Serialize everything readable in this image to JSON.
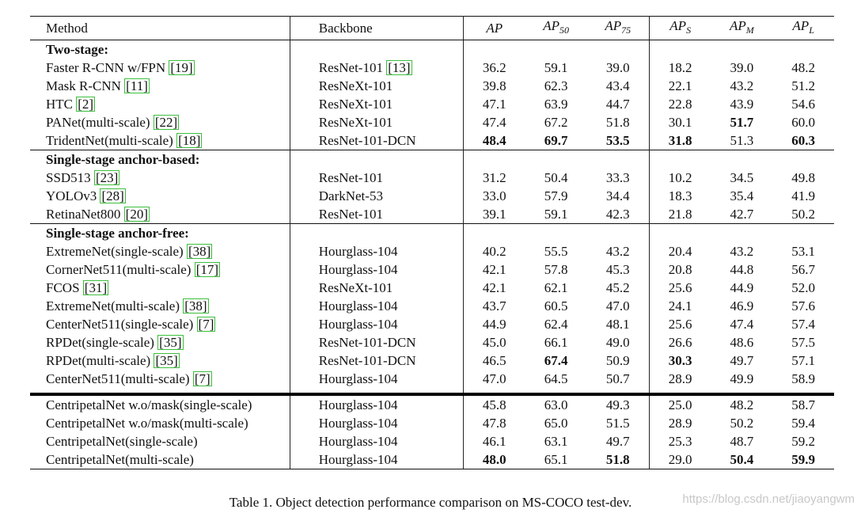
{
  "table": {
    "headers": {
      "method": "Method",
      "backbone": "Backbone",
      "ap": {
        "base": "AP",
        "sub": ""
      },
      "ap50": {
        "base": "AP",
        "sub": "50"
      },
      "ap75": {
        "base": "AP",
        "sub": "75"
      },
      "aps": {
        "base": "AP",
        "sub": "S"
      },
      "apm": {
        "base": "AP",
        "sub": "M"
      },
      "apl": {
        "base": "AP",
        "sub": "L"
      }
    },
    "sections": [
      {
        "title": "Two-stage:",
        "rows": [
          {
            "method": "Faster R-CNN w/FPN",
            "method_ref": "19",
            "backbone": "ResNet-101",
            "backbone_ref": "13",
            "vals": [
              "36.2",
              "59.1",
              "39.0",
              "18.2",
              "39.0",
              "48.2"
            ],
            "bold": [
              false,
              false,
              false,
              false,
              false,
              false
            ]
          },
          {
            "method": "Mask R-CNN",
            "method_ref": "11",
            "backbone": "ResNeXt-101",
            "backbone_ref": "",
            "vals": [
              "39.8",
              "62.3",
              "43.4",
              "22.1",
              "43.2",
              "51.2"
            ],
            "bold": [
              false,
              false,
              false,
              false,
              false,
              false
            ]
          },
          {
            "method": "HTC",
            "method_ref": "2",
            "backbone": "ResNeXt-101",
            "backbone_ref": "",
            "vals": [
              "47.1",
              "63.9",
              "44.7",
              "22.8",
              "43.9",
              "54.6"
            ],
            "bold": [
              false,
              false,
              false,
              false,
              false,
              false
            ]
          },
          {
            "method": "PANet(multi-scale)",
            "method_ref": "22",
            "backbone": "ResNeXt-101",
            "backbone_ref": "",
            "vals": [
              "47.4",
              "67.2",
              "51.8",
              "30.1",
              "51.7",
              "60.0"
            ],
            "bold": [
              false,
              false,
              false,
              false,
              true,
              false
            ]
          },
          {
            "method": "TridentNet(multi-scale)",
            "method_ref": "18",
            "backbone": "ResNet-101-DCN",
            "backbone_ref": "",
            "vals": [
              "48.4",
              "69.7",
              "53.5",
              "31.8",
              "51.3",
              "60.3"
            ],
            "bold": [
              true,
              true,
              true,
              true,
              false,
              true
            ]
          }
        ]
      },
      {
        "title": "Single-stage anchor-based:",
        "rows": [
          {
            "method": "SSD513",
            "method_ref": "23",
            "backbone": "ResNet-101",
            "backbone_ref": "",
            "vals": [
              "31.2",
              "50.4",
              "33.3",
              "10.2",
              "34.5",
              "49.8"
            ],
            "bold": [
              false,
              false,
              false,
              false,
              false,
              false
            ]
          },
          {
            "method": "YOLOv3",
            "method_ref": "28",
            "backbone": "DarkNet-53",
            "backbone_ref": "",
            "vals": [
              "33.0",
              "57.9",
              "34.4",
              "18.3",
              "35.4",
              "41.9"
            ],
            "bold": [
              false,
              false,
              false,
              false,
              false,
              false
            ]
          },
          {
            "method": "RetinaNet800",
            "method_ref": "20",
            "backbone": "ResNet-101",
            "backbone_ref": "",
            "vals": [
              "39.1",
              "59.1",
              "42.3",
              "21.8",
              "42.7",
              "50.2"
            ],
            "bold": [
              false,
              false,
              false,
              false,
              false,
              false
            ]
          }
        ]
      },
      {
        "title": "Single-stage anchor-free:",
        "rows": [
          {
            "method": "ExtremeNet(single-scale)",
            "method_ref": "38",
            "backbone": "Hourglass-104",
            "backbone_ref": "",
            "vals": [
              "40.2",
              "55.5",
              "43.2",
              "20.4",
              "43.2",
              "53.1"
            ],
            "bold": [
              false,
              false,
              false,
              false,
              false,
              false
            ]
          },
          {
            "method": "CornerNet511(multi-scale)",
            "method_ref": "17",
            "backbone": "Hourglass-104",
            "backbone_ref": "",
            "vals": [
              "42.1",
              "57.8",
              "45.3",
              "20.8",
              "44.8",
              "56.7"
            ],
            "bold": [
              false,
              false,
              false,
              false,
              false,
              false
            ]
          },
          {
            "method": "FCOS",
            "method_ref": "31",
            "backbone": "ResNeXt-101",
            "backbone_ref": "",
            "vals": [
              "42.1",
              "62.1",
              "45.2",
              "25.6",
              "44.9",
              "52.0"
            ],
            "bold": [
              false,
              false,
              false,
              false,
              false,
              false
            ]
          },
          {
            "method": "ExtremeNet(multi-scale)",
            "method_ref": "38",
            "backbone": "Hourglass-104",
            "backbone_ref": "",
            "vals": [
              "43.7",
              "60.5",
              "47.0",
              "24.1",
              "46.9",
              "57.6"
            ],
            "bold": [
              false,
              false,
              false,
              false,
              false,
              false
            ]
          },
          {
            "method": "CenterNet511(single-scale)",
            "method_ref": "7",
            "backbone": "Hourglass-104",
            "backbone_ref": "",
            "vals": [
              "44.9",
              "62.4",
              "48.1",
              "25.6",
              "47.4",
              "57.4"
            ],
            "bold": [
              false,
              false,
              false,
              false,
              false,
              false
            ]
          },
          {
            "method": "RPDet(single-scale)",
            "method_ref": "35",
            "backbone": "ResNet-101-DCN",
            "backbone_ref": "",
            "vals": [
              "45.0",
              "66.1",
              "49.0",
              "26.6",
              "48.6",
              "57.5"
            ],
            "bold": [
              false,
              false,
              false,
              false,
              false,
              false
            ]
          },
          {
            "method": "RPDet(multi-scale)",
            "method_ref": "35",
            "backbone": "ResNet-101-DCN",
            "backbone_ref": "",
            "vals": [
              "46.5",
              "67.4",
              "50.9",
              "30.3",
              "49.7",
              "57.1"
            ],
            "bold": [
              false,
              true,
              false,
              true,
              false,
              false
            ]
          },
          {
            "method": "CenterNet511(multi-scale)",
            "method_ref": "7",
            "backbone": "Hourglass-104",
            "backbone_ref": "",
            "vals": [
              "47.0",
              "64.5",
              "50.7",
              "28.9",
              "49.9",
              "58.9"
            ],
            "bold": [
              false,
              false,
              false,
              false,
              false,
              false
            ]
          }
        ]
      }
    ],
    "ours": [
      {
        "method": "CentripetalNet w.o/mask(single-scale)",
        "backbone": "Hourglass-104",
        "vals": [
          "45.8",
          "63.0",
          "49.3",
          "25.0",
          "48.2",
          "58.7"
        ],
        "bold": [
          false,
          false,
          false,
          false,
          false,
          false
        ]
      },
      {
        "method": "CentripetalNet w.o/mask(multi-scale)",
        "backbone": "Hourglass-104",
        "vals": [
          "47.8",
          "65.0",
          "51.5",
          "28.9",
          "50.2",
          "59.4"
        ],
        "bold": [
          false,
          false,
          false,
          false,
          false,
          false
        ]
      },
      {
        "method": "CentripetalNet(single-scale)",
        "backbone": "Hourglass-104",
        "vals": [
          "46.1",
          "63.1",
          "49.7",
          "25.3",
          "48.7",
          "59.2"
        ],
        "bold": [
          false,
          false,
          false,
          false,
          false,
          false
        ]
      },
      {
        "method": "CentripetalNet(multi-scale)",
        "backbone": "Hourglass-104",
        "vals": [
          "48.0",
          "65.1",
          "51.8",
          "29.0",
          "50.4",
          "59.9"
        ],
        "bold": [
          true,
          false,
          true,
          false,
          true,
          true
        ]
      }
    ]
  },
  "caption": "Table 1. Object detection performance comparison on MS-COCO test-dev.",
  "watermark": "https://blog.csdn.net/jiaoyangwm",
  "colors": {
    "ref_box": "#3cbf3c",
    "rule": "#111111",
    "watermark": "#c8c8c8"
  }
}
